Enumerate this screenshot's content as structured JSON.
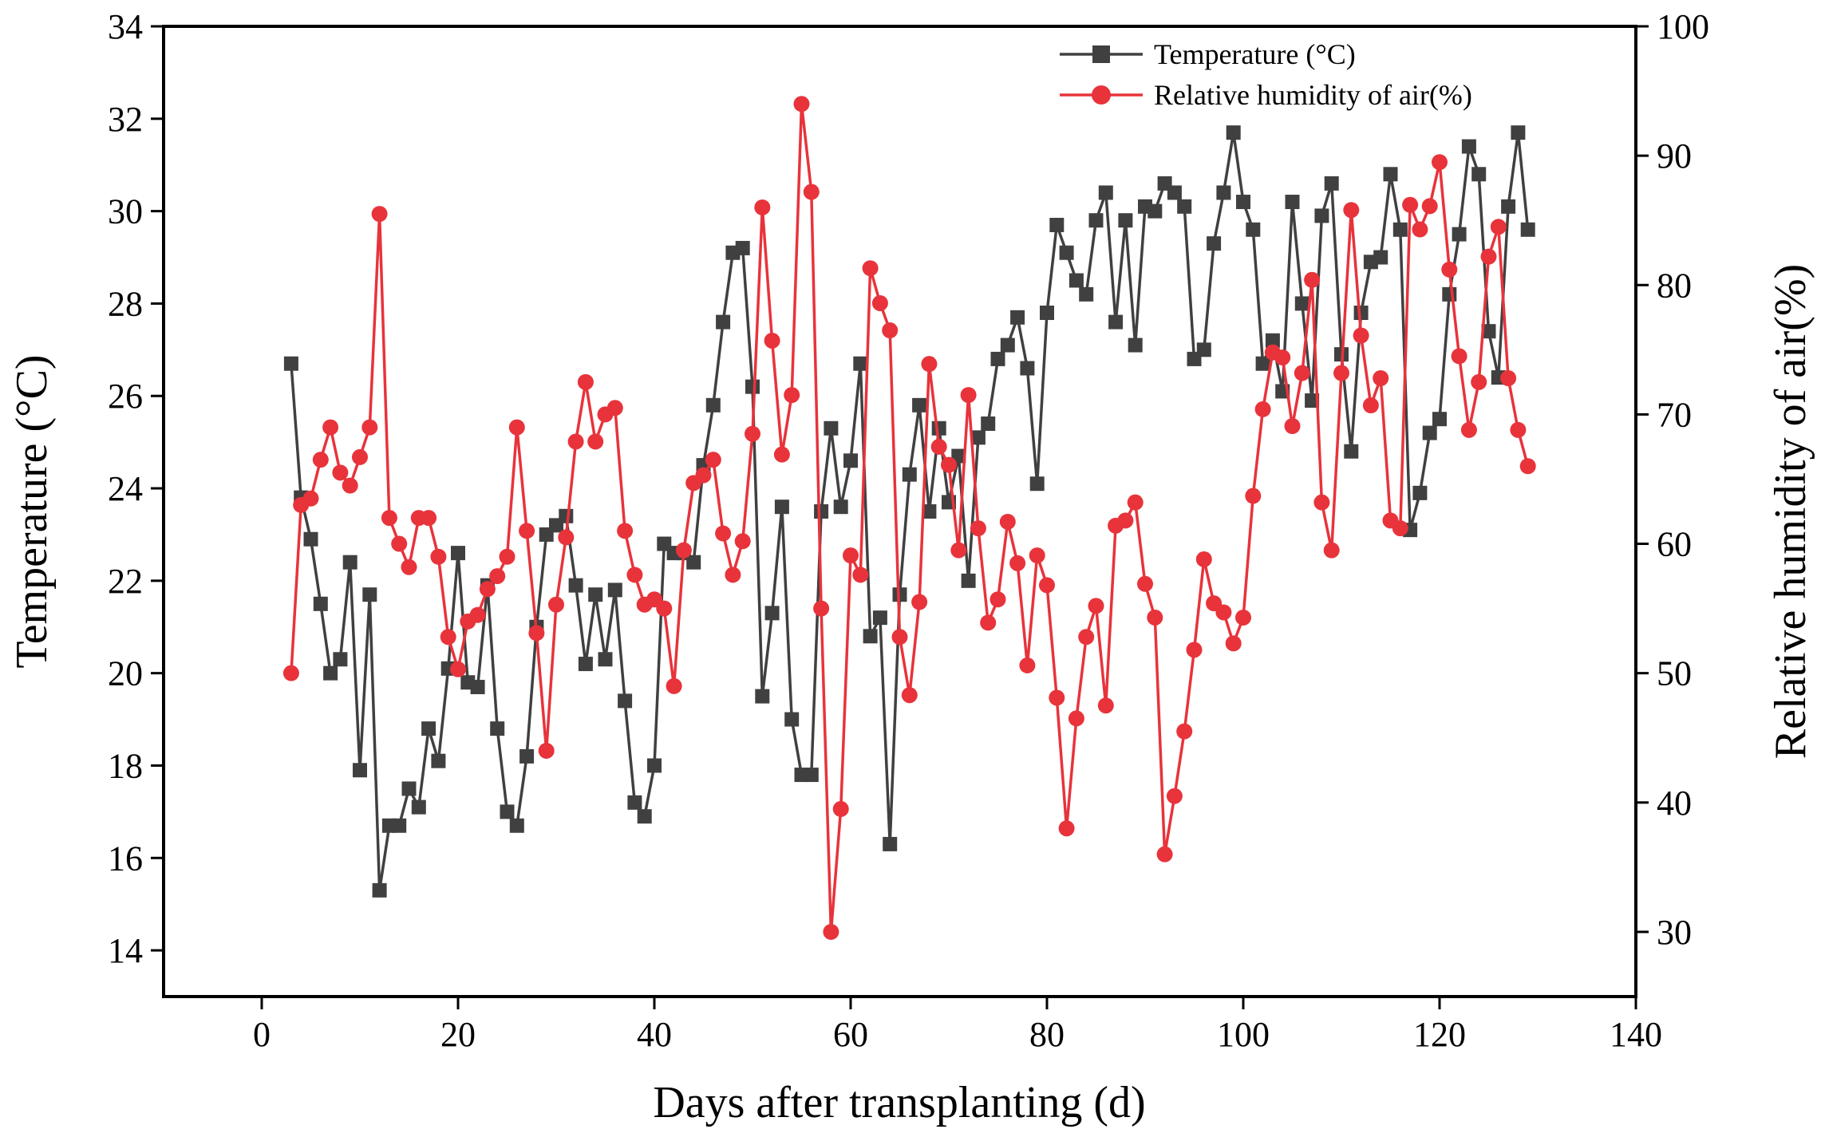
{
  "chart_data": {
    "type": "line",
    "title": "",
    "xlabel": "Days after transplanting (d)",
    "ylabel_left": "Temperature (°C)",
    "ylabel_right": "Relative humidity of air(%)",
    "xlim": [
      -10,
      140
    ],
    "ylim_left": [
      13,
      34
    ],
    "ylim_right": [
      25,
      100
    ],
    "x_ticks": [
      0,
      20,
      40,
      60,
      80,
      100,
      120,
      140
    ],
    "y_ticks_left": [
      14,
      16,
      18,
      20,
      22,
      24,
      26,
      28,
      30,
      32,
      34
    ],
    "y_ticks_right": [
      30,
      40,
      50,
      60,
      70,
      80,
      90,
      100
    ],
    "x_tick_labels": [
      "0",
      "20",
      "40",
      "60",
      "80",
      "100",
      "120",
      "140"
    ],
    "y_tick_labels_left": [
      "14",
      "16",
      "18",
      "20",
      "22",
      "24",
      "26",
      "28",
      "30",
      "32",
      "34"
    ],
    "y_tick_labels_right": [
      "30",
      "40",
      "50",
      "60",
      "70",
      "80",
      "90",
      "100"
    ],
    "grid": false,
    "legend_position": "top-right",
    "x": [
      3,
      4,
      5,
      6,
      7,
      8,
      9,
      10,
      11,
      12,
      13,
      14,
      15,
      16,
      17,
      18,
      19,
      20,
      21,
      22,
      23,
      24,
      25,
      26,
      27,
      28,
      29,
      30,
      31,
      32,
      33,
      34,
      35,
      36,
      37,
      38,
      39,
      40,
      41,
      42,
      43,
      44,
      45,
      46,
      47,
      48,
      49,
      50,
      51,
      52,
      53,
      54,
      55,
      56,
      57,
      58,
      59,
      60,
      61,
      62,
      63,
      64,
      65,
      66,
      67,
      68,
      69,
      70,
      71,
      72,
      73,
      74,
      75,
      76,
      77,
      78,
      79,
      80,
      81,
      82,
      83,
      84,
      85,
      86,
      87,
      88,
      89,
      90,
      91,
      92,
      93,
      94,
      95,
      96,
      97,
      98,
      99,
      100,
      101,
      102,
      103,
      104,
      105,
      106,
      107,
      108,
      109,
      110,
      111,
      112,
      113,
      114,
      115,
      116,
      117,
      118,
      119,
      120,
      121,
      122,
      123,
      124,
      125,
      126,
      127,
      128,
      129
    ],
    "series": [
      {
        "name": "Temperature  (°C)",
        "axis": "left",
        "color": "#404040",
        "marker": "square",
        "values": [
          26.7,
          23.8,
          22.9,
          21.5,
          20.0,
          20.3,
          22.4,
          17.9,
          21.7,
          15.3,
          16.7,
          16.7,
          17.5,
          17.1,
          18.8,
          18.1,
          20.1,
          22.6,
          19.8,
          19.7,
          21.9,
          18.8,
          17.0,
          16.7,
          18.2,
          21.0,
          23.0,
          23.2,
          23.4,
          21.9,
          20.2,
          21.7,
          20.3,
          21.8,
          19.4,
          17.2,
          16.9,
          18.0,
          22.8,
          22.6,
          22.6,
          22.4,
          24.5,
          25.8,
          27.6,
          29.1,
          29.2,
          26.2,
          19.5,
          21.3,
          23.6,
          19.0,
          17.8,
          17.8,
          23.5,
          25.3,
          23.6,
          24.6,
          26.7,
          20.8,
          21.2,
          16.3,
          21.7,
          24.3,
          25.8,
          23.5,
          25.3,
          23.7,
          24.7,
          22.0,
          25.1,
          25.4,
          26.8,
          27.1,
          27.7,
          26.6,
          24.1,
          27.8,
          29.7,
          29.1,
          28.5,
          28.2,
          29.8,
          30.4,
          27.6,
          29.8,
          27.1,
          30.1,
          30.0,
          30.6,
          30.4,
          30.1,
          26.8,
          27.0,
          29.3,
          30.4,
          31.7,
          30.2,
          29.6,
          26.7,
          27.2,
          26.1,
          30.2,
          28.0,
          25.9,
          29.9,
          30.6,
          26.9,
          24.8,
          27.8,
          28.9,
          29.0,
          30.8,
          29.6,
          23.1,
          23.9,
          25.2,
          25.5,
          28.2,
          29.5,
          31.4,
          30.8,
          27.4,
          26.4,
          30.1,
          31.7,
          29.6
        ]
      },
      {
        "name": "Relative humidity of air(%)",
        "axis": "right",
        "color": "#e8333b",
        "marker": "circle",
        "values": [
          50.0,
          63.0,
          63.5,
          66.5,
          69.0,
          65.5,
          64.5,
          66.7,
          69.0,
          85.5,
          62.0,
          60.0,
          58.2,
          62.0,
          62.0,
          59.0,
          52.8,
          50.3,
          54.0,
          54.5,
          56.5,
          57.5,
          59.0,
          69.0,
          61.0,
          53.1,
          44.0,
          55.3,
          60.5,
          67.9,
          72.5,
          67.9,
          70.0,
          70.5,
          61.0,
          57.6,
          55.3,
          55.7,
          55.0,
          49.0,
          59.5,
          64.7,
          65.3,
          66.5,
          60.8,
          57.6,
          60.2,
          68.5,
          86.0,
          75.7,
          66.9,
          71.5,
          94.0,
          87.2,
          55.0,
          30.0,
          39.5,
          59.1,
          57.6,
          81.3,
          78.6,
          76.5,
          52.8,
          48.3,
          55.5,
          73.9,
          67.5,
          66.1,
          59.5,
          71.5,
          61.2,
          53.9,
          55.7,
          61.7,
          58.5,
          50.6,
          59.1,
          56.8,
          48.1,
          38.0,
          46.5,
          52.8,
          55.2,
          47.5,
          61.4,
          61.8,
          63.2,
          56.9,
          54.3,
          36.0,
          40.5,
          45.5,
          51.8,
          58.8,
          55.4,
          54.7,
          52.3,
          54.3,
          63.7,
          70.4,
          74.8,
          74.4,
          69.1,
          73.2,
          80.4,
          63.2,
          59.5,
          73.2,
          85.8,
          76.1,
          70.7,
          72.8,
          61.8,
          61.2,
          86.2,
          84.3,
          86.1,
          89.5,
          81.2,
          74.5,
          68.8,
          72.5,
          82.2,
          84.5,
          72.8,
          68.8,
          66.0
        ]
      }
    ]
  }
}
